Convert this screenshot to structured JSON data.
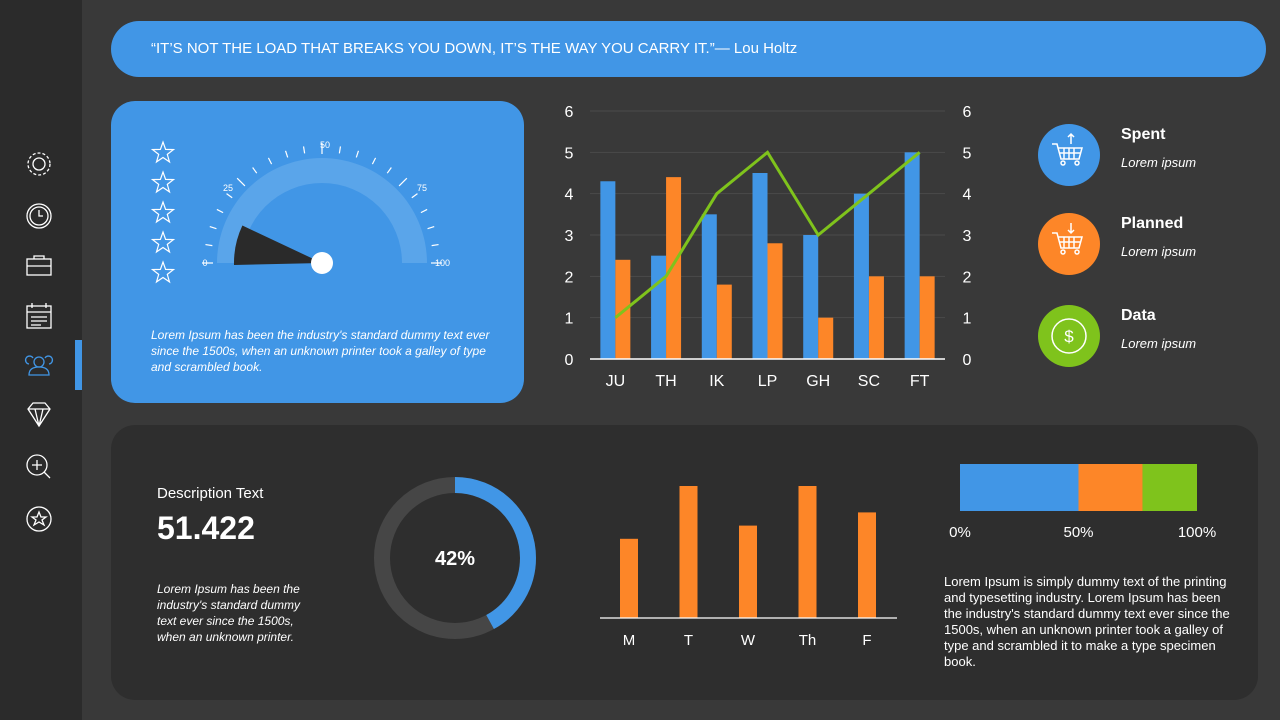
{
  "sidebar": {
    "items": [
      {
        "icon": "gear-icon"
      },
      {
        "icon": "clock-icon"
      },
      {
        "icon": "briefcase-icon"
      },
      {
        "icon": "calendar-icon"
      },
      {
        "icon": "users-icon",
        "active": true
      },
      {
        "icon": "diamond-icon"
      },
      {
        "icon": "zoom-in-icon"
      },
      {
        "icon": "star-icon"
      }
    ]
  },
  "quote": {
    "text": "“IT’S NOT THE LOAD THAT BREAKS YOU DOWN, IT’S THE WAY YOU CARRY IT.”— Lou Holtz"
  },
  "gauge_card": {
    "stars_total": 5,
    "stars_filled": 0,
    "text": "Lorem Ipsum has been the industry's standard dummy text ever since the 1500s, when an unknown printer took a galley of type and scrambled book."
  },
  "legend": [
    {
      "title": "Spent",
      "subtitle": "Lorem ipsum",
      "icon": "cart-up-icon",
      "color": "#4196e6"
    },
    {
      "title": "Planned",
      "subtitle": "Lorem ipsum",
      "icon": "cart-down-icon",
      "color": "#fd8628"
    },
    {
      "title": "Data",
      "subtitle": "Lorem ipsum",
      "icon": "dollar-icon",
      "color": "#7fc31c"
    }
  ],
  "description": {
    "title": "Description Text",
    "value": "51.422",
    "text": "Lorem Ipsum has been the industry's standard dummy text ever since the 1500s, when an unknown printer."
  },
  "right_text": "Lorem Ipsum is simply dummy text of the printing and typesetting industry. Lorem Ipsum has been the industry's standard dummy text ever since the 1500s, when an unknown printer took a galley of type and scrambled it to make a type specimen book.",
  "colors": {
    "blue": "#4196e6",
    "orange": "#fd8628",
    "green": "#7fc31c"
  },
  "chart_data": [
    {
      "type": "gauge",
      "ticks": [
        "0",
        "25",
        "50",
        "75",
        "100"
      ],
      "range": [
        0,
        100
      ],
      "value": 14
    },
    {
      "type": "bar",
      "categories": [
        "JU",
        "TH",
        "IK",
        "LP",
        "GH",
        "SC",
        "FT"
      ],
      "ylim": [
        0,
        6
      ],
      "y2lim": [
        0,
        6
      ],
      "yticks": [
        "0",
        "1",
        "2",
        "3",
        "4",
        "5",
        "6"
      ],
      "grid": true,
      "series": [
        {
          "kind": "bar",
          "color": "#4196e6",
          "values": [
            4.3,
            2.5,
            3.5,
            4.5,
            3,
            4,
            5
          ]
        },
        {
          "kind": "bar",
          "color": "#fd8628",
          "values": [
            2.4,
            4.4,
            1.8,
            2.8,
            1,
            2,
            2
          ]
        },
        {
          "kind": "line",
          "axis": "right",
          "color": "#7fc31c",
          "values": [
            1,
            2,
            4,
            5,
            3,
            4,
            5
          ]
        }
      ]
    },
    {
      "type": "pie",
      "variant": "donut",
      "label": "42%",
      "value": 42,
      "color": "#4196e6"
    },
    {
      "type": "bar",
      "categories": [
        "M",
        "T",
        "W",
        "Th",
        "F"
      ],
      "values": [
        3,
        5,
        3.5,
        5,
        4
      ],
      "color": "#fd8628"
    },
    {
      "type": "bar",
      "variant": "stacked-100",
      "ticks": [
        "0%",
        "50%",
        "100%"
      ],
      "segments": [
        {
          "value": 50,
          "color": "#4196e6"
        },
        {
          "value": 27,
          "color": "#fd8628"
        },
        {
          "value": 23,
          "color": "#7fc31c"
        }
      ]
    }
  ]
}
